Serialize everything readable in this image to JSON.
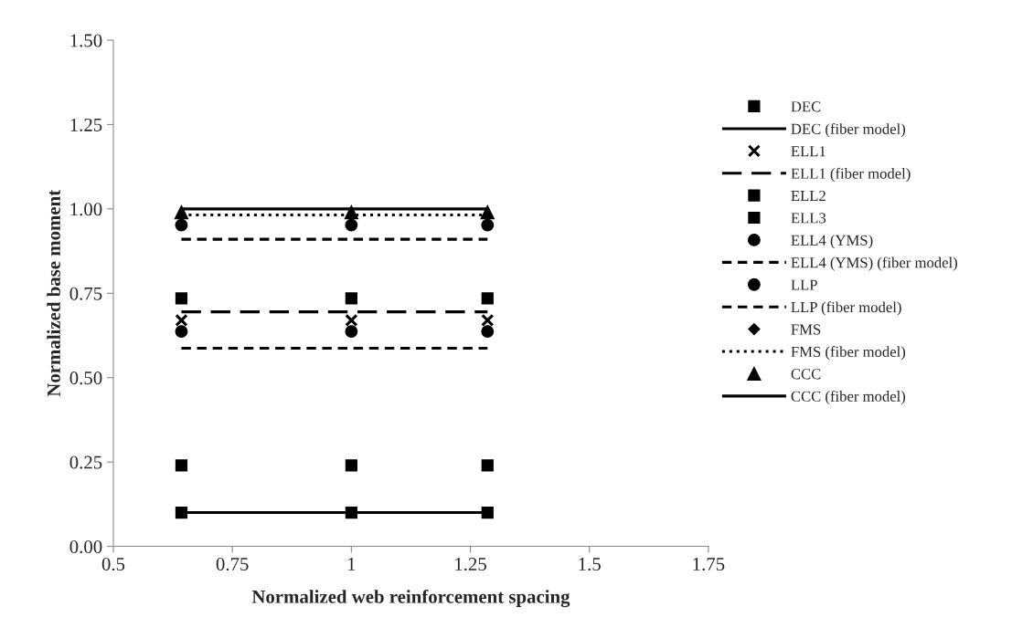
{
  "chart_data": {
    "type": "scatter",
    "xlabel": "Normalized web reinforcement spacing",
    "ylabel": "Normalized base moment",
    "x": [
      0.643,
      1,
      1.286
    ],
    "xlim": [
      0.5,
      1.75
    ],
    "xticks": [
      0.5,
      0.75,
      1,
      1.25,
      1.5,
      1.75
    ],
    "ylim": [
      0,
      1.5
    ],
    "yticks": [
      {
        "value": 0,
        "label": "0.00"
      },
      {
        "value": 0.25,
        "label": "0.25"
      },
      {
        "value": 0.5,
        "label": "0.50"
      },
      {
        "value": 0.75,
        "label": "0.75"
      },
      {
        "value": 1,
        "label": "1.00"
      },
      {
        "value": 1.25,
        "label": "1.25"
      },
      {
        "value": 1.5,
        "label": "1.50"
      }
    ],
    "grid": false,
    "legend": "right",
    "series": [
      {
        "name": "DEC",
        "marker": "square",
        "color": "#000000",
        "values": [
          0.1,
          0.1,
          0.1
        ]
      },
      {
        "name": "DEC (fiber model)",
        "type": "line",
        "line_style": "solid",
        "color": "#000000",
        "values": [
          0.1,
          0.1,
          0.1
        ]
      },
      {
        "name": "ELL1",
        "marker": "cross",
        "color": "#000000",
        "values": [
          0.67,
          0.67,
          0.67
        ]
      },
      {
        "name": "ELL1 (fiber model)",
        "type": "line",
        "line_style": "long dashed",
        "color": "#000000",
        "values": [
          0.695,
          0.695,
          0.695
        ]
      },
      {
        "name": "ELL2",
        "marker": "square",
        "color": "#000000",
        "values": [
          0.735,
          0.735,
          0.735
        ]
      },
      {
        "name": "ELL3",
        "marker": "square",
        "color": "#000000",
        "values": [
          0.24,
          0.24,
          0.24
        ]
      },
      {
        "name": "ELL4 (YMS)",
        "marker": "circle",
        "color": "#000000",
        "values": [
          0.637,
          0.637,
          0.637
        ]
      },
      {
        "name": "ELL4 (YMS) (fiber model)",
        "type": "line",
        "line_style": "dashed",
        "color": "#000000",
        "values": [
          0.587,
          0.587,
          0.587
        ]
      },
      {
        "name": "LLP",
        "marker": "circle",
        "color": "#000000",
        "values": [
          0.952,
          0.952,
          0.952
        ]
      },
      {
        "name": "LLP (fiber model)",
        "type": "line",
        "line_style": "dashed",
        "color": "#000000",
        "values": [
          0.91,
          0.91,
          0.91
        ]
      },
      {
        "name": "FMS",
        "marker": "diamond",
        "color": "#000000",
        "values": [
          null,
          null,
          null
        ]
      },
      {
        "name": "FMS (fiber model)",
        "type": "line",
        "line_style": "dotted",
        "color": "#000000",
        "values": [
          0.982,
          0.982,
          0.982
        ]
      },
      {
        "name": "CCC",
        "marker": "triangle",
        "color": "#000000",
        "values": [
          0.99,
          0.99,
          0.99
        ]
      },
      {
        "name": "CCC (fiber model)",
        "type": "line",
        "line_style": "solid",
        "color": "#000000",
        "values": [
          1.0,
          1.0,
          1.0
        ]
      }
    ]
  }
}
